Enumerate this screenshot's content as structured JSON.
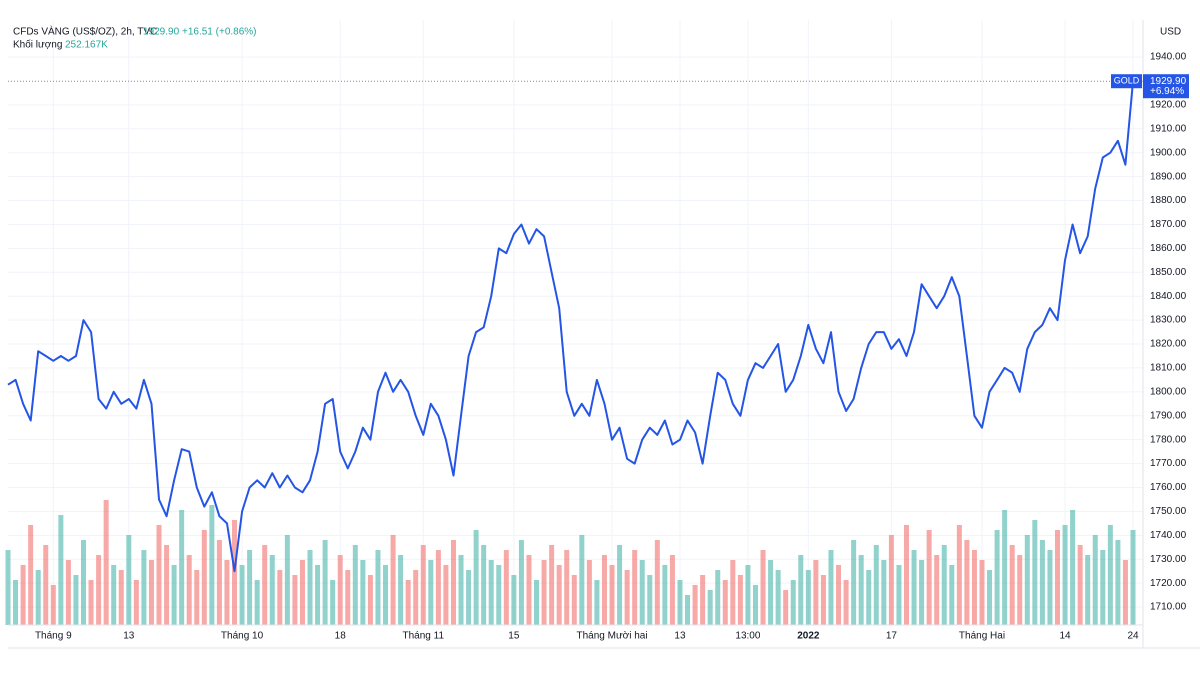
{
  "chart_data": {
    "type": "line",
    "title": "CFDs VÀNG (US$/OZ), 2h, TVC",
    "last_price": "1929.90",
    "change": "+16.51 (+0.86%)",
    "volume_label": "Khối lượng",
    "volume_value": "252.167K",
    "currency": "USD",
    "symbol_tag": "GOLD",
    "price_tag": "1929.90",
    "percent_tag": "+6.94%",
    "last_value": 1929.9,
    "categories": [
      null,
      null,
      null,
      null,
      null,
      null,
      "Tháng 9",
      null,
      null,
      null,
      null,
      null,
      null,
      null,
      null,
      null,
      "13",
      null,
      null,
      null,
      null,
      null,
      null,
      null,
      null,
      null,
      null,
      null,
      null,
      null,
      null,
      "Tháng 10",
      null,
      null,
      null,
      null,
      null,
      null,
      null,
      null,
      null,
      null,
      null,
      null,
      "18",
      null,
      null,
      null,
      null,
      null,
      null,
      null,
      null,
      null,
      null,
      "Tháng 11",
      null,
      null,
      null,
      null,
      null,
      null,
      null,
      null,
      null,
      null,
      null,
      "15",
      null,
      null,
      null,
      null,
      null,
      null,
      null,
      null,
      null,
      null,
      null,
      null,
      "Tháng Mười hai",
      null,
      null,
      null,
      null,
      null,
      null,
      null,
      null,
      "13",
      null,
      null,
      null,
      null,
      null,
      null,
      null,
      null,
      "13:00",
      null,
      null,
      null,
      null,
      null,
      null,
      null,
      "2022",
      null,
      null,
      null,
      null,
      null,
      null,
      null,
      null,
      null,
      null,
      "17",
      null,
      null,
      null,
      null,
      null,
      null,
      null,
      null,
      null,
      null,
      null,
      "Tháng Hai",
      null,
      null,
      null,
      null,
      null,
      null,
      null,
      null,
      null,
      null,
      "14",
      null,
      null,
      null,
      null,
      null,
      null,
      null,
      null,
      "24"
    ],
    "series": [
      {
        "name": "GOLD",
        "color": "#2455e6",
        "values": [
          1803,
          1805,
          1795,
          1788,
          1817,
          1815,
          1813,
          1815,
          1813,
          1815,
          1830,
          1825,
          1797,
          1793,
          1800,
          1795,
          1797,
          1793,
          1805,
          1795,
          1755,
          1748,
          1763,
          1776,
          1775,
          1760,
          1752,
          1758,
          1748,
          1745,
          1725,
          1750,
          1760,
          1763,
          1760,
          1766,
          1760,
          1765,
          1760,
          1758,
          1763,
          1775,
          1795,
          1797,
          1775,
          1768,
          1775,
          1785,
          1780,
          1800,
          1808,
          1800,
          1805,
          1800,
          1790,
          1782,
          1795,
          1790,
          1780,
          1765,
          1790,
          1815,
          1825,
          1827,
          1840,
          1860,
          1858,
          1866,
          1870,
          1862,
          1868,
          1865,
          1850,
          1835,
          1800,
          1790,
          1795,
          1790,
          1805,
          1795,
          1780,
          1785,
          1772,
          1770,
          1780,
          1785,
          1782,
          1788,
          1778,
          1780,
          1788,
          1783,
          1770,
          1790,
          1808,
          1805,
          1795,
          1790,
          1805,
          1812,
          1810,
          1815,
          1820,
          1800,
          1805,
          1815,
          1828,
          1818,
          1812,
          1825,
          1800,
          1792,
          1797,
          1810,
          1820,
          1825,
          1825,
          1818,
          1822,
          1815,
          1825,
          1845,
          1840,
          1835,
          1840,
          1848,
          1840,
          1815,
          1790,
          1785,
          1800,
          1805,
          1810,
          1808,
          1800,
          1818,
          1825,
          1828,
          1835,
          1830,
          1855,
          1870,
          1858,
          1865,
          1885,
          1898,
          1900,
          1905,
          1895,
          1929.9
        ]
      },
      {
        "name": "Khối lượng",
        "up_color": "rgba(38,166,154,0.5)",
        "down_color": "rgba(239,83,80,0.5)",
        "values": [
          150,
          90,
          120,
          200,
          110,
          160,
          80,
          220,
          130,
          100,
          170,
          90,
          140,
          250,
          120,
          110,
          180,
          90,
          150,
          130,
          200,
          160,
          120,
          230,
          140,
          110,
          190,
          240,
          170,
          130,
          210,
          120,
          150,
          90,
          160,
          140,
          110,
          180,
          100,
          130,
          150,
          120,
          170,
          90,
          140,
          110,
          160,
          130,
          100,
          150,
          120,
          180,
          140,
          90,
          110,
          160,
          130,
          150,
          120,
          170,
          140,
          110,
          190,
          160,
          130,
          120,
          150,
          100,
          170,
          140,
          90,
          130,
          160,
          120,
          150,
          100,
          180,
          130,
          90,
          140,
          120,
          160,
          110,
          150,
          130,
          100,
          170,
          120,
          140,
          90,
          60,
          80,
          100,
          70,
          110,
          90,
          130,
          100,
          120,
          80,
          150,
          130,
          110,
          70,
          90,
          140,
          110,
          130,
          100,
          150,
          120,
          90,
          170,
          140,
          110,
          160,
          130,
          180,
          120,
          200,
          150,
          130,
          190,
          140,
          160,
          120,
          200,
          170,
          150,
          130,
          110,
          190,
          230,
          160,
          140,
          180,
          210,
          170,
          150,
          190,
          200,
          230,
          160,
          140,
          180,
          150,
          200,
          170,
          130,
          190
        ]
      }
    ],
    "ylim": [
      1702.5,
      1955.5
    ],
    "yticks": [
      {
        "value": 1710,
        "label": "1710.00"
      },
      {
        "value": 1720,
        "label": "1720.00"
      },
      {
        "value": 1730,
        "label": "1730.00"
      },
      {
        "value": 1740,
        "label": "1740.00"
      },
      {
        "value": 1750,
        "label": "1750.00"
      },
      {
        "value": 1760,
        "label": "1760.00"
      },
      {
        "value": 1770,
        "label": "1770.00"
      },
      {
        "value": 1780,
        "label": "1780.00"
      },
      {
        "value": 1790,
        "label": "1790.00"
      },
      {
        "value": 1800,
        "label": "1800.00"
      },
      {
        "value": 1810,
        "label": "1810.00"
      },
      {
        "value": 1820,
        "label": "1820.00"
      },
      {
        "value": 1830,
        "label": "1830.00"
      },
      {
        "value": 1840,
        "label": "1840.00"
      },
      {
        "value": 1850,
        "label": "1850.00"
      },
      {
        "value": 1860,
        "label": "1860.00"
      },
      {
        "value": 1870,
        "label": "1870.00"
      },
      {
        "value": 1880,
        "label": "1880.00"
      },
      {
        "value": 1890,
        "label": "1890.00"
      },
      {
        "value": 1900,
        "label": "1900.00"
      },
      {
        "value": 1910,
        "label": "1910.00"
      },
      {
        "value": 1920,
        "label": "1920.00"
      },
      {
        "value": 1940,
        "label": "1940.00"
      }
    ],
    "grid": true
  }
}
